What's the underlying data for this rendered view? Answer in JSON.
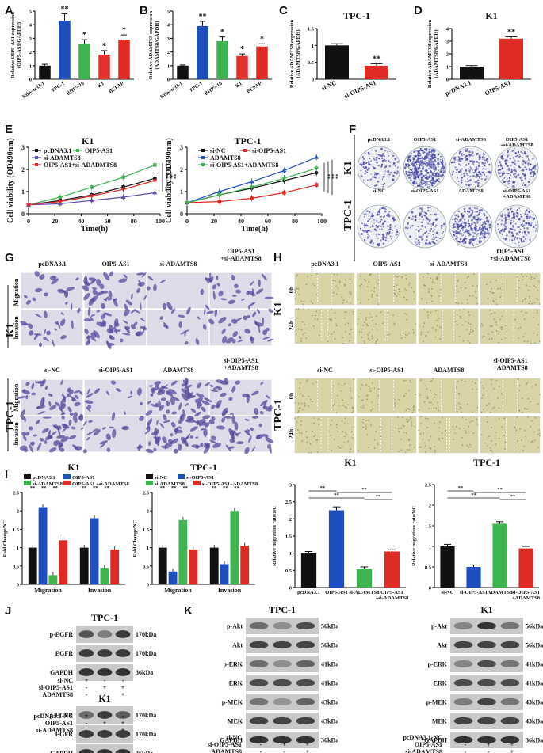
{
  "panels": {
    "A": "A",
    "B": "B",
    "C": "C",
    "D": "D",
    "E": "E",
    "F": "F",
    "G": "G",
    "H": "H",
    "I": "I",
    "J": "J",
    "K": "K"
  },
  "colors": {
    "black": "#111111",
    "blue": "#1f4fbf",
    "green": "#3fb34f",
    "orange": "#e3322b",
    "red": "#e02a24",
    "purple": "#5d4fb3"
  },
  "chart_data": [
    {
      "id": "A",
      "type": "bar",
      "ylabel": "Relative OIP5-AS1 expression (OIP5-AS1/GAPDH)",
      "categories": [
        "Nthy-ori3-1",
        "TPC-1",
        "BHP5-16",
        "K1",
        "BCPAP"
      ],
      "values": [
        1.0,
        4.3,
        2.6,
        1.8,
        2.9
      ],
      "errors": [
        0.1,
        0.5,
        0.3,
        0.3,
        0.35
      ],
      "stars": [
        "",
        "**",
        "*",
        "*",
        "*"
      ],
      "ylim": [
        0,
        5
      ],
      "yticks": [
        0,
        1,
        2,
        3,
        4,
        5
      ],
      "colors": [
        "#111111",
        "#1f4fbf",
        "#3fb34f",
        "#e3322b",
        "#e02a24"
      ]
    },
    {
      "id": "B",
      "type": "bar",
      "ylabel": "Relative ADAMTS8 expression (ADAMTS8/GAPDH)",
      "categories": [
        "Nthy-ori3-1",
        "TPC-1",
        "BHP5-16",
        "K1",
        "BCPAP"
      ],
      "values": [
        1.0,
        3.9,
        2.8,
        1.7,
        2.4
      ],
      "errors": [
        0.05,
        0.35,
        0.3,
        0.15,
        0.2
      ],
      "stars": [
        "",
        "**",
        "*",
        "*",
        "*"
      ],
      "ylim": [
        0,
        5
      ],
      "yticks": [
        0,
        1,
        2,
        3,
        4,
        5
      ],
      "colors": [
        "#111111",
        "#1f4fbf",
        "#3fb34f",
        "#e3322b",
        "#e02a24"
      ]
    },
    {
      "id": "C",
      "type": "bar",
      "title": "TPC-1",
      "ylabel": "Relative ADAMTS8 expression (ADAMTS8/GAPDH)",
      "categories": [
        "si-NC",
        "si-OIP5-AS1"
      ],
      "values": [
        1.0,
        0.4
      ],
      "errors": [
        0.05,
        0.06
      ],
      "stars": [
        "",
        "**"
      ],
      "ylim": [
        0,
        1.5
      ],
      "yticks": [
        0.0,
        0.5,
        1.0,
        1.5
      ],
      "colors": [
        "#111111",
        "#e02a24"
      ]
    },
    {
      "id": "D",
      "type": "bar",
      "title": "K1",
      "ylabel": "Relative ADAMTS8 expression (ADAMTS8/GAPDH)",
      "categories": [
        "pcDNA3.1",
        "OIP5-AS1"
      ],
      "values": [
        1.0,
        3.2
      ],
      "errors": [
        0.08,
        0.15
      ],
      "stars": [
        "",
        "**"
      ],
      "ylim": [
        0,
        4
      ],
      "yticks": [
        0,
        1,
        2,
        3,
        4
      ],
      "colors": [
        "#111111",
        "#e02a24"
      ]
    },
    {
      "id": "E1",
      "type": "line",
      "title": "K1",
      "xlabel": "Time(h)",
      "ylabel": "Cell viability (OD490nm)",
      "x": [
        0,
        24,
        48,
        72,
        96
      ],
      "xlim": [
        0,
        100
      ],
      "xticks": [
        0,
        20,
        40,
        60,
        80,
        100
      ],
      "ylim": [
        0,
        3
      ],
      "yticks": [
        0,
        1,
        2,
        3
      ],
      "stars": [
        "**",
        "**",
        "**"
      ],
      "series": [
        {
          "name": "pcDNA3.1",
          "color": "#111111",
          "marker": "square",
          "values": [
            0.4,
            0.6,
            0.85,
            1.2,
            1.6
          ]
        },
        {
          "name": "OIP5-AS1",
          "color": "#3fb34f",
          "marker": "square",
          "values": [
            0.4,
            0.75,
            1.2,
            1.65,
            2.2
          ]
        },
        {
          "name": "si-ADAMTS8",
          "color": "#5d4fb3",
          "marker": "triangle",
          "values": [
            0.4,
            0.45,
            0.6,
            0.75,
            0.95
          ]
        },
        {
          "name": "OIP5-AS1+si-ADADMTS8",
          "color": "#e02a24",
          "marker": "triangle-down",
          "values": [
            0.4,
            0.55,
            0.8,
            1.1,
            1.5
          ]
        }
      ]
    },
    {
      "id": "E2",
      "type": "line",
      "title": "TPC-1",
      "xlabel": "Time(h)",
      "ylabel": "Cell viability (OD490nm)",
      "x": [
        0,
        24,
        48,
        72,
        96
      ],
      "xlim": [
        0,
        100
      ],
      "xticks": [
        0,
        20,
        40,
        60,
        80,
        100
      ],
      "ylim": [
        0,
        3
      ],
      "yticks": [
        0,
        1,
        2,
        3
      ],
      "stars": [
        "**",
        "**",
        "**"
      ],
      "series": [
        {
          "name": "si-NC",
          "color": "#111111",
          "marker": "circle",
          "values": [
            0.5,
            0.85,
            1.15,
            1.5,
            1.85
          ]
        },
        {
          "name": "si-OIP5-AS1",
          "color": "#e02a24",
          "marker": "square",
          "values": [
            0.5,
            0.55,
            0.7,
            0.95,
            1.3
          ]
        },
        {
          "name": "ADAMTS8",
          "color": "#1f4fbf",
          "marker": "triangle",
          "values": [
            0.5,
            1.0,
            1.45,
            1.95,
            2.55
          ]
        },
        {
          "name": "si-OIP5-AS1+ADAMTS8",
          "color": "#3fb34f",
          "marker": "triangle-down",
          "values": [
            0.5,
            0.85,
            1.2,
            1.6,
            2.05
          ]
        }
      ]
    },
    {
      "id": "I1",
      "type": "bar",
      "title": "K1",
      "ylabel": "Fold Change/NC",
      "categories": [
        "Migration",
        "Invasion"
      ],
      "series": [
        {
          "name": "pcDNA3.1",
          "color": "#111111",
          "values": [
            1.0,
            1.0
          ]
        },
        {
          "name": "OIP5-AS1",
          "color": "#1f4fbf",
          "values": [
            2.1,
            1.8
          ]
        },
        {
          "name": "si-ADAMTS8",
          "color": "#3fb34f",
          "values": [
            0.25,
            0.45
          ]
        },
        {
          "name": "OIP5-AS1 +si-ADAMTS8",
          "color": "#e02a24",
          "values": [
            1.2,
            0.95
          ]
        }
      ],
      "ylim": [
        0,
        2.5
      ],
      "yticks": [
        0.0,
        0.5,
        1.0,
        1.5,
        2.0,
        2.5
      ]
    },
    {
      "id": "I2",
      "type": "bar",
      "title": "TPC-1",
      "ylabel": "Fold Change/NC",
      "categories": [
        "Migration",
        "Invasion"
      ],
      "series": [
        {
          "name": "si-NC",
          "color": "#111111",
          "values": [
            1.0,
            1.0
          ]
        },
        {
          "name": "si-OIP5-AS1",
          "color": "#1f4fbf",
          "values": [
            0.35,
            0.55
          ]
        },
        {
          "name": "si-ADAMTS8",
          "color": "#3fb34f",
          "values": [
            1.75,
            2.0
          ]
        },
        {
          "name": "si-OIP5-AS1+ADAMTS8",
          "color": "#e02a24",
          "values": [
            0.95,
            1.05
          ]
        }
      ],
      "ylim": [
        0,
        2.5
      ],
      "yticks": [
        0.0,
        0.5,
        1.0,
        1.5,
        2.0,
        2.5
      ]
    },
    {
      "id": "I3",
      "type": "bar",
      "title": "K1",
      "ylabel": "Relative migration rate/NC",
      "categories": [
        "pcDNA3.1",
        "OIP5-AS1",
        "si-ADAMTS8",
        "OIP5-AS1 +si-ADAMTS8"
      ],
      "values": [
        1.0,
        2.25,
        0.55,
        1.05
      ],
      "errors": [
        0.05,
        0.1,
        0.05,
        0.05
      ],
      "ylim": [
        0,
        3
      ],
      "yticks": [
        0.0,
        0.5,
        1.0,
        1.5,
        2.0,
        2.5,
        3.0
      ],
      "colors": [
        "#111111",
        "#1f4fbf",
        "#3fb34f",
        "#e02a24"
      ]
    },
    {
      "id": "I4",
      "type": "bar",
      "title": "TPC-1",
      "ylabel": "Relative migration rate/NC",
      "categories": [
        "si-NC",
        "si-OIP5-AS1",
        "ADAMTS8",
        "si-OIP5-AS1 +ADAMTS8"
      ],
      "values": [
        1.0,
        0.5,
        1.55,
        0.95
      ],
      "errors": [
        0.05,
        0.05,
        0.05,
        0.05
      ],
      "ylim": [
        0,
        2.5
      ],
      "yticks": [
        0.0,
        0.5,
        1.0,
        1.5,
        2.0,
        2.5
      ],
      "colors": [
        "#111111",
        "#1f4fbf",
        "#3fb34f",
        "#e02a24"
      ]
    }
  ],
  "sig": {
    "double": "**",
    "single": "*"
  },
  "F": {
    "rowK1": "K1",
    "rowTPC": "TPC-1",
    "colsK1": [
      "pcDNA3.1",
      "OIP5-AS1",
      "si-ADAMTS8",
      "OIP5-AS1\n+si-ADAMTS8"
    ],
    "colsTPC": [
      "si-NC",
      "si-OIP5-AS1",
      "ADAMTS8",
      "si-OIP5-AS1\n+ADAMTS8"
    ]
  },
  "G": {
    "k1": "K1",
    "tpc": "TPC-1",
    "migration": "Migration",
    "invasion": "Invasion",
    "colsK1": [
      "pcDNA3.1",
      "OIP5-AS1",
      "si-ADAMTS8",
      "OIP5-AS1\n+si-ADAMTS8"
    ],
    "colsTPC": [
      "si-NC",
      "si-OIP5-AS1",
      "ADAMTS8",
      "si-OIP5-AS1\n+ADAMTS8"
    ]
  },
  "H": {
    "k1": "K1",
    "tpc": "TPC-1",
    "t0": "0h",
    "t24": "24h",
    "colsK1": [
      "pcDNA3.1",
      "OIP5-AS1",
      "si-ADAMTS8",
      "OIP5-AS1\n+si-ADAMTS8"
    ],
    "colsTPC": [
      "si-NC",
      "si-OIP5-AS1",
      "ADAMTS8",
      "si-OIP5-AS1\n+ADAMTS8"
    ]
  },
  "J": {
    "title": "TPC-1",
    "title2": "K1",
    "proteins": [
      "p-EGFR",
      "EGFR",
      "GAPDH"
    ],
    "sizes": [
      "170kDa",
      "170kDa",
      "36kDa"
    ],
    "rows1": [
      "si-NC",
      "si-OIP5-AS1",
      "ADAMTS8"
    ],
    "signs1": [
      [
        "+",
        "-",
        "-"
      ],
      [
        "-",
        "+",
        "+"
      ],
      [
        "-",
        "-",
        "+"
      ]
    ],
    "rows2": [
      "pcDNA3.1-NC",
      "OIP5-AS1",
      "si-ADAMTS8"
    ],
    "signs2": [
      [
        "+",
        "-",
        "-"
      ],
      [
        "-",
        "+",
        "+"
      ],
      [
        "-",
        "-",
        "+"
      ]
    ]
  },
  "K": {
    "title1": "TPC-1",
    "title2": "K1",
    "proteins": [
      "p-Akt",
      "Akt",
      "p-ERK",
      "ERK",
      "p-MEK",
      "MEK",
      "GAPDH"
    ],
    "sizes": [
      "56kDa",
      "56kDa",
      "41kDa",
      "41kDa",
      "43kDa",
      "43kDa",
      "36kDa"
    ],
    "rows1": [
      "si-NC",
      "si-OIP5-AS1",
      "ADAMTS8"
    ],
    "signs1": [
      [
        "+",
        "-",
        "-"
      ],
      [
        "-",
        "+",
        "+"
      ],
      [
        "-",
        "-",
        "+"
      ]
    ],
    "rows2": [
      "pcDNA3.1-NC",
      "OIP5-AS1",
      "si-ADAMTS8"
    ],
    "signs2": [
      [
        "+",
        "-",
        "-"
      ],
      [
        "-",
        "+",
        "+"
      ],
      [
        "-",
        "-",
        "+"
      ]
    ]
  }
}
